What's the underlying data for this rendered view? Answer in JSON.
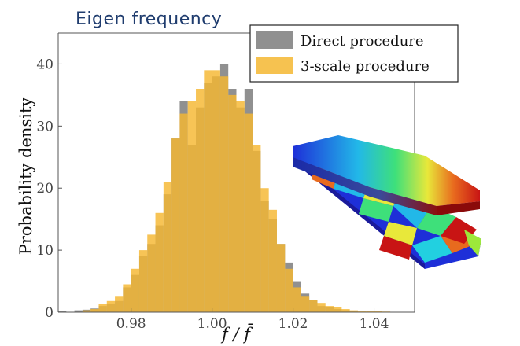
{
  "title": "Eigen frequency",
  "chart_data": {
    "type": "histogram",
    "title": "Eigen frequency",
    "xlabel": "f / f̄",
    "ylabel": "Probability density",
    "xlim": [
      0.962,
      1.05
    ],
    "ylim": [
      0,
      45
    ],
    "xticks": [
      0.98,
      1.0,
      1.02,
      1.04
    ],
    "xtick_labels": [
      "0.98",
      "1.00",
      "1.02",
      "1.04"
    ],
    "yticks": [
      0,
      10,
      20,
      30,
      40
    ],
    "ytick_labels": [
      "0",
      "10",
      "20",
      "30",
      "40"
    ],
    "grid": false,
    "legend": "top-right",
    "series": [
      {
        "name": "Direct procedure",
        "color": "#909090",
        "bins": [
          [
            0.963,
            0.2
          ],
          [
            0.967,
            0.3
          ],
          [
            0.969,
            0.4
          ],
          [
            0.971,
            0.6
          ],
          [
            0.973,
            1.0
          ],
          [
            0.975,
            1.4
          ],
          [
            0.977,
            1.8
          ],
          [
            0.979,
            4.0
          ],
          [
            0.981,
            6.0
          ],
          [
            0.983,
            9.0
          ],
          [
            0.985,
            11.0
          ],
          [
            0.987,
            14.0
          ],
          [
            0.989,
            19.0
          ],
          [
            0.991,
            28.0
          ],
          [
            0.993,
            34.0
          ],
          [
            0.995,
            27.0
          ],
          [
            0.997,
            33.0
          ],
          [
            0.999,
            37.0
          ],
          [
            1.001,
            38.0
          ],
          [
            1.003,
            40.0
          ],
          [
            1.005,
            36.0
          ],
          [
            1.007,
            33.0
          ],
          [
            1.009,
            36.0
          ],
          [
            1.011,
            26.0
          ],
          [
            1.013,
            18.0
          ],
          [
            1.015,
            15.0
          ],
          [
            1.017,
            11.0
          ],
          [
            1.019,
            8.0
          ],
          [
            1.021,
            5.0
          ],
          [
            1.023,
            3.0
          ],
          [
            1.025,
            2.0
          ],
          [
            1.027,
            1.0
          ],
          [
            1.029,
            0.8
          ],
          [
            1.031,
            0.5
          ],
          [
            1.033,
            0.3
          ],
          [
            1.035,
            0.2
          ]
        ]
      },
      {
        "name": "3-scale procedure",
        "color": "#f5b731",
        "bins": [
          [
            0.969,
            0.3
          ],
          [
            0.971,
            0.5
          ],
          [
            0.973,
            1.3
          ],
          [
            0.975,
            1.8
          ],
          [
            0.977,
            2.5
          ],
          [
            0.979,
            4.5
          ],
          [
            0.981,
            7.0
          ],
          [
            0.983,
            10.0
          ],
          [
            0.985,
            12.5
          ],
          [
            0.987,
            16.0
          ],
          [
            0.989,
            21.0
          ],
          [
            0.991,
            28.0
          ],
          [
            0.993,
            32.0
          ],
          [
            0.995,
            34.0
          ],
          [
            0.997,
            36.0
          ],
          [
            0.999,
            39.0
          ],
          [
            1.001,
            39.0
          ],
          [
            1.003,
            38.0
          ],
          [
            1.005,
            35.0
          ],
          [
            1.007,
            34.0
          ],
          [
            1.009,
            32.0
          ],
          [
            1.011,
            27.0
          ],
          [
            1.013,
            20.0
          ],
          [
            1.015,
            16.5
          ],
          [
            1.017,
            11.0
          ],
          [
            1.019,
            7.0
          ],
          [
            1.021,
            4.0
          ],
          [
            1.023,
            2.5
          ],
          [
            1.025,
            2.0
          ],
          [
            1.027,
            1.5
          ],
          [
            1.029,
            1.0
          ],
          [
            1.031,
            0.8
          ],
          [
            1.033,
            0.5
          ],
          [
            1.035,
            0.3
          ],
          [
            1.037,
            0.2
          ],
          [
            1.039,
            0.2
          ],
          [
            1.041,
            0.2
          ],
          [
            1.043,
            0.1
          ]
        ]
      }
    ]
  },
  "inset": {
    "name": "beam-fe-model",
    "colors": [
      "#1e2fd8",
      "#22b8e8",
      "#3ee07a",
      "#e8e83a",
      "#e86a1e",
      "#d81e1e"
    ]
  }
}
